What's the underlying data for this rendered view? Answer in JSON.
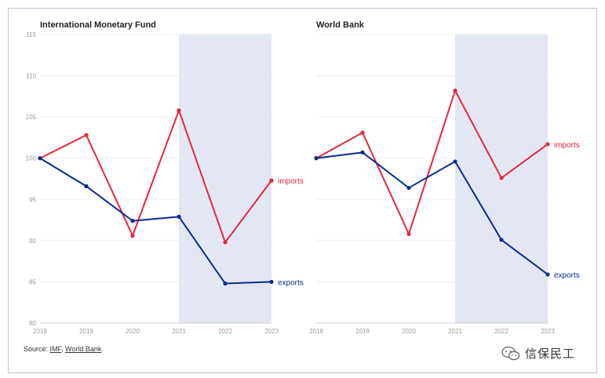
{
  "chart_data": [
    {
      "type": "line",
      "title": "International Monetary Fund",
      "x": [
        "2018",
        "2019",
        "2020",
        "2021",
        "2022",
        "2023"
      ],
      "ylim": [
        80,
        115
      ],
      "yticks": [
        "80",
        "85",
        "90",
        "95",
        "100",
        "105",
        "110",
        "115"
      ],
      "shaded_range": [
        "2021",
        "2023"
      ],
      "grid": true,
      "series": [
        {
          "name": "imports",
          "color": "#e8253f",
          "values": [
            100,
            102.8,
            90.6,
            105.8,
            89.8,
            97.3
          ]
        },
        {
          "name": "exports",
          "color": "#0b2b8f",
          "values": [
            100,
            96.6,
            92.4,
            92.9,
            84.8,
            85.0
          ]
        }
      ]
    },
    {
      "type": "line",
      "title": "World Bank",
      "x": [
        "2018",
        "2019",
        "2020",
        "2021",
        "2022",
        "2023"
      ],
      "ylim": [
        80,
        115
      ],
      "shaded_range": [
        "2021",
        "2023"
      ],
      "grid": true,
      "series": [
        {
          "name": "imports",
          "color": "#e8253f",
          "values": [
            100,
            103.1,
            90.8,
            108.2,
            97.6,
            101.7
          ]
        },
        {
          "name": "exports",
          "color": "#0b2b8f",
          "values": [
            100,
            100.7,
            96.4,
            99.6,
            90.1,
            85.9
          ]
        }
      ]
    }
  ],
  "source": {
    "prefix": "Source: ",
    "link1": "IMF",
    "separator": ", ",
    "link2": "World Bank"
  },
  "watermark": {
    "text": "信保民工",
    "icon": "wechat-icon"
  }
}
